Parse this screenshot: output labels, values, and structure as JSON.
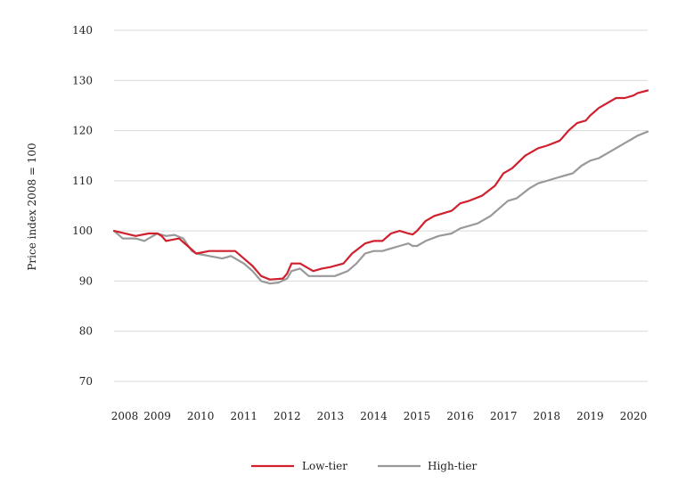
{
  "chart_data": {
    "type": "line",
    "title": "",
    "xlabel": "",
    "ylabel": "Price index 2008 = 100",
    "ylim": [
      70,
      140
    ],
    "xlim": [
      2008.0,
      2020.33
    ],
    "yticks": [
      70,
      80,
      90,
      100,
      110,
      120,
      130,
      140
    ],
    "xticks": [
      2008,
      2009,
      2010,
      2011,
      2012,
      2013,
      2014,
      2015,
      2016,
      2017,
      2018,
      2019,
      2020
    ],
    "grid": "horizontal",
    "legend": "bottom-center",
    "series": [
      {
        "name": "Low-tier",
        "color": "#d0202e",
        "x": [
          2008.0,
          2008.5,
          2008.8,
          2009.0,
          2009.1,
          2009.2,
          2009.5,
          2009.7,
          2009.9,
          2010.2,
          2010.5,
          2010.8,
          2011.0,
          2011.2,
          2011.4,
          2011.6,
          2011.9,
          2012.0,
          2012.1,
          2012.3,
          2012.6,
          2012.8,
          2013.0,
          2013.3,
          2013.5,
          2013.8,
          2014.0,
          2014.2,
          2014.4,
          2014.6,
          2014.8,
          2014.9,
          2015.0,
          2015.2,
          2015.4,
          2015.6,
          2015.8,
          2016.0,
          2016.2,
          2016.5,
          2016.8,
          2017.0,
          2017.2,
          2017.5,
          2017.8,
          2018.0,
          2018.3,
          2018.5,
          2018.7,
          2018.9,
          2019.0,
          2019.2,
          2019.4,
          2019.6,
          2019.8,
          2020.0,
          2020.1,
          2020.33
        ],
        "values": [
          100,
          99,
          99.5,
          99.5,
          99,
          98,
          98.5,
          97,
          95.5,
          96,
          96,
          96,
          94.5,
          93,
          91,
          90.3,
          90.5,
          91.5,
          93.5,
          93.5,
          92,
          92.5,
          92.8,
          93.5,
          95.5,
          97.5,
          98,
          98,
          99.5,
          100,
          99.5,
          99.3,
          100,
          102,
          103,
          103.5,
          104,
          105.5,
          106,
          107,
          109,
          111.5,
          112.5,
          115,
          116.5,
          117,
          118,
          120,
          121.5,
          122,
          123,
          124.5,
          125.5,
          126.5,
          126.5,
          127,
          127.5,
          128
        ]
      },
      {
        "name": "High-tier",
        "color": "#999999",
        "x": [
          2008.0,
          2008.2,
          2008.5,
          2008.7,
          2008.8,
          2009.0,
          2009.2,
          2009.4,
          2009.6,
          2009.8,
          2009.9,
          2010.2,
          2010.5,
          2010.7,
          2011.0,
          2011.2,
          2011.4,
          2011.6,
          2011.8,
          2012.0,
          2012.1,
          2012.3,
          2012.5,
          2012.7,
          2012.9,
          2013.1,
          2013.4,
          2013.6,
          2013.8,
          2014.0,
          2014.2,
          2014.4,
          2014.6,
          2014.8,
          2014.9,
          2015.0,
          2015.2,
          2015.5,
          2015.8,
          2016.0,
          2016.2,
          2016.4,
          2016.7,
          2016.9,
          2017.1,
          2017.3,
          2017.6,
          2017.8,
          2018.0,
          2018.2,
          2018.4,
          2018.6,
          2018.8,
          2019.0,
          2019.2,
          2019.4,
          2019.6,
          2019.8,
          2020.0,
          2020.1,
          2020.33
        ],
        "values": [
          100,
          98.5,
          98.5,
          98,
          98.5,
          99.5,
          99,
          99.2,
          98.5,
          96,
          95.5,
          95,
          94.5,
          95,
          93.5,
          92,
          90,
          89.5,
          89.7,
          90.5,
          92,
          92.5,
          91,
          91,
          91,
          91,
          92,
          93.5,
          95.5,
          96,
          96,
          96.5,
          97,
          97.5,
          97,
          97,
          98,
          99,
          99.5,
          100.5,
          101,
          101.5,
          103,
          104.5,
          106,
          106.5,
          108.5,
          109.5,
          110,
          110.5,
          111,
          111.5,
          113,
          114,
          114.5,
          115.5,
          116.5,
          117.5,
          118.5,
          119,
          119.8
        ]
      }
    ]
  }
}
